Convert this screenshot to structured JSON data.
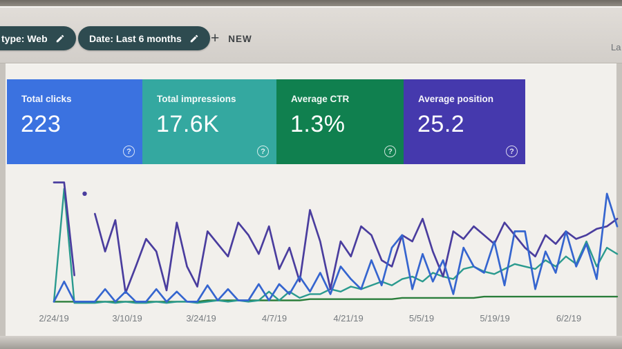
{
  "header": {
    "search_type_chip": "type: Web",
    "date_chip": "Date: Last 6 months",
    "new_button_plus": "+",
    "new_button_label": "NEW",
    "clipped_right_text": "La"
  },
  "metric_cards": [
    {
      "label": "Total clicks",
      "value": "223",
      "color": "#3b72e0",
      "help": "?"
    },
    {
      "label": "Total impressions",
      "value": "17.6K",
      "color": "#34a8a0",
      "help": "?"
    },
    {
      "label": "Average CTR",
      "value": "1.3%",
      "color": "#10804f",
      "help": "?"
    },
    {
      "label": "Average position",
      "value": "25.2",
      "color": "#4539ad",
      "help": "?"
    }
  ],
  "chart_data": {
    "type": "line",
    "title": "",
    "xlabel": "",
    "ylabel": "",
    "grid": false,
    "legend": "none",
    "ylim": [
      0,
      100
    ],
    "x_tick_labels": [
      "2/24/19",
      "3/10/19",
      "3/24/19",
      "4/7/19",
      "4/21/19",
      "5/5/19",
      "5/19/19",
      "6/2/19"
    ],
    "series": [
      {
        "name": "impressions",
        "color": "#4a3d9e",
        "values": [
          97,
          97,
          23,
          null,
          72,
          42,
          67,
          9,
          30,
          52,
          42,
          11,
          65,
          30,
          14,
          58,
          48,
          38,
          65,
          55,
          40,
          62,
          28,
          45,
          18,
          75,
          50,
          12,
          50,
          38,
          62,
          55,
          35,
          30,
          55,
          50,
          68,
          42,
          22,
          58,
          52,
          62,
          55,
          48,
          65,
          55,
          45,
          38,
          55,
          48,
          58,
          52,
          55,
          60,
          62,
          68
        ]
      },
      {
        "name": "clicks",
        "color": "#3565cf",
        "values": [
          2,
          18,
          2,
          2,
          2,
          12,
          2,
          10,
          2,
          2,
          12,
          2,
          10,
          2,
          2,
          15,
          3,
          12,
          3,
          3,
          16,
          3,
          16,
          8,
          22,
          10,
          25,
          8,
          30,
          20,
          12,
          35,
          15,
          45,
          55,
          12,
          40,
          18,
          35,
          8,
          45,
          30,
          25,
          50,
          15,
          58,
          58,
          12,
          42,
          25,
          58,
          30,
          48,
          20,
          88,
          62
        ]
      },
      {
        "name": "ctr",
        "color": "#2a9a8e",
        "values": [
          2,
          92,
          1,
          1,
          1,
          2,
          1,
          2,
          1,
          1,
          2,
          1,
          2,
          2,
          1,
          2,
          3,
          2,
          3,
          2,
          3,
          10,
          3,
          10,
          5,
          8,
          8,
          12,
          10,
          14,
          12,
          15,
          18,
          15,
          20,
          22,
          18,
          25,
          22,
          20,
          28,
          30,
          26,
          24,
          28,
          32,
          30,
          28,
          35,
          30,
          38,
          32,
          50,
          30,
          45,
          40
        ]
      },
      {
        "name": "position",
        "color": "#2a7d3a",
        "values": [
          2,
          2,
          2,
          2,
          2,
          2,
          2,
          2,
          2,
          2,
          2,
          2,
          2,
          2,
          2,
          3,
          3,
          3,
          3,
          3,
          3,
          3,
          3,
          3,
          3,
          4,
          4,
          4,
          4,
          4,
          4,
          4,
          4,
          4,
          5,
          5,
          5,
          5,
          5,
          5,
          5,
          5,
          6,
          6,
          6,
          6,
          6,
          6,
          6,
          6,
          6,
          6,
          6,
          6,
          6,
          6
        ]
      }
    ],
    "isolated_point": {
      "series": "impressions",
      "index": 3,
      "value": 88
    }
  }
}
